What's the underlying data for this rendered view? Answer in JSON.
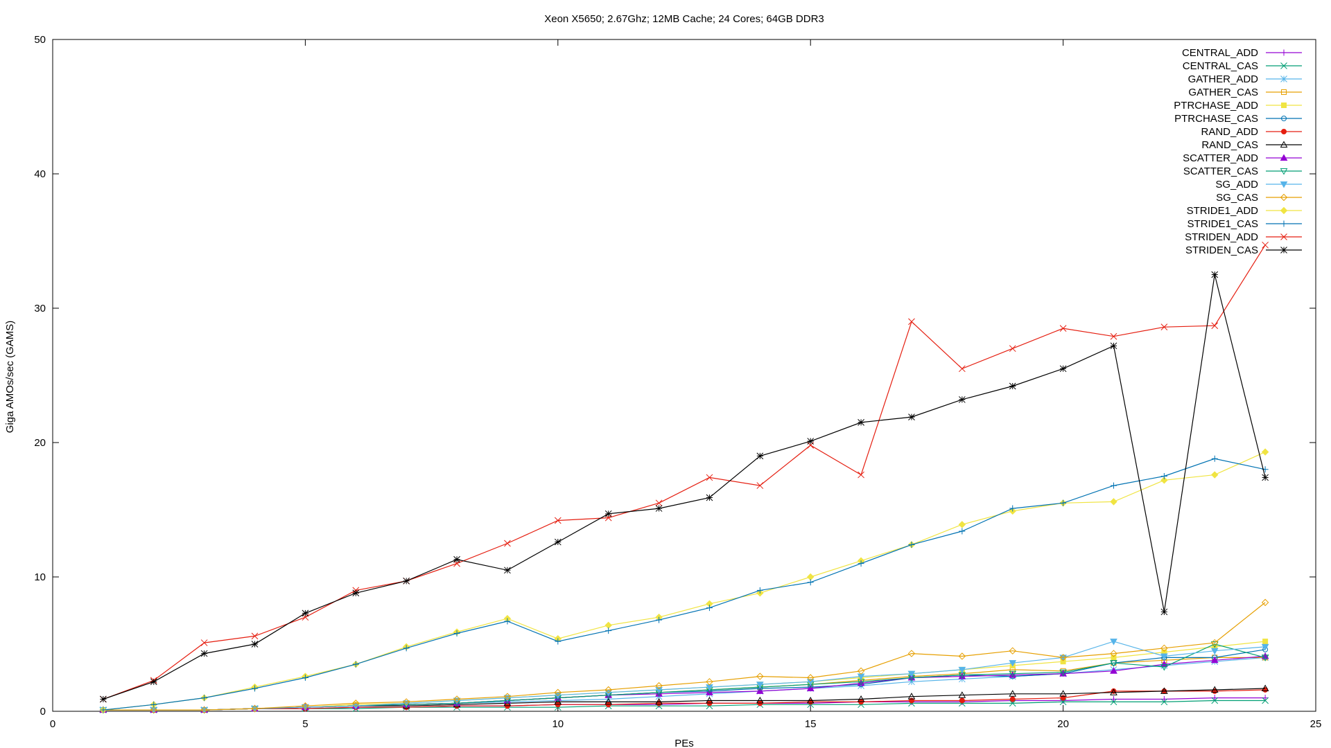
{
  "chart_data": {
    "type": "line",
    "title": "Xeon X5650; 2.67Ghz; 12MB Cache; 24 Cores; 64GB DDR3",
    "xlabel": "PEs",
    "ylabel": "Giga AMOs/sec (GAMS)",
    "xlim": [
      0,
      25
    ],
    "ylim": [
      0,
      50
    ],
    "xticks": [
      0,
      5,
      10,
      15,
      20,
      25
    ],
    "yticks": [
      0,
      10,
      20,
      30,
      40,
      50
    ],
    "grid": false,
    "legend_position": "top-right",
    "x": [
      1,
      2,
      3,
      4,
      5,
      6,
      7,
      8,
      9,
      10,
      11,
      12,
      13,
      14,
      15,
      16,
      17,
      18,
      19,
      20,
      21,
      22,
      23,
      24
    ],
    "series": [
      {
        "name": "CENTRAL_ADD",
        "color": "#9400d3",
        "marker": "plus",
        "values": [
          0.1,
          0.1,
          0.1,
          0.2,
          0.2,
          0.3,
          0.3,
          0.4,
          0.4,
          0.5,
          0.5,
          0.5,
          0.6,
          0.6,
          0.6,
          0.7,
          0.7,
          0.7,
          0.8,
          0.8,
          0.9,
          0.9,
          1.0,
          1.0
        ]
      },
      {
        "name": "CENTRAL_CAS",
        "color": "#009e73",
        "marker": "cross",
        "values": [
          0.1,
          0.1,
          0.1,
          0.2,
          0.2,
          0.2,
          0.3,
          0.3,
          0.3,
          0.3,
          0.4,
          0.4,
          0.4,
          0.5,
          0.5,
          0.5,
          0.6,
          0.6,
          0.6,
          0.7,
          0.7,
          0.7,
          0.8,
          0.8
        ]
      },
      {
        "name": "GATHER_ADD",
        "color": "#56b4e9",
        "marker": "star",
        "values": [
          0.1,
          0.1,
          0.1,
          0.2,
          0.3,
          0.4,
          0.5,
          0.6,
          0.7,
          0.8,
          0.9,
          1.1,
          1.3,
          1.5,
          1.7,
          1.9,
          2.2,
          2.4,
          2.6,
          2.8,
          3.1,
          3.4,
          3.7,
          4.0
        ]
      },
      {
        "name": "GATHER_CAS",
        "color": "#e69f00",
        "marker": "square",
        "values": [
          0.1,
          0.1,
          0.1,
          0.2,
          0.3,
          0.4,
          0.5,
          0.6,
          0.8,
          1.0,
          1.2,
          1.4,
          1.6,
          1.8,
          2.0,
          2.3,
          2.6,
          2.8,
          3.1,
          3.0,
          3.6,
          3.8,
          4.0,
          4.0
        ]
      },
      {
        "name": "PTRCHASE_ADD",
        "color": "#f0e442",
        "marker": "fsquare",
        "values": [
          0.1,
          0.1,
          0.1,
          0.2,
          0.3,
          0.5,
          0.6,
          0.8,
          1.0,
          1.2,
          1.4,
          1.6,
          1.8,
          2.0,
          2.2,
          2.5,
          2.8,
          3.1,
          3.4,
          3.7,
          4.0,
          4.4,
          4.8,
          5.2
        ]
      },
      {
        "name": "PTRCHASE_CAS",
        "color": "#0072b2",
        "marker": "circle",
        "values": [
          0.1,
          0.1,
          0.1,
          0.2,
          0.3,
          0.4,
          0.5,
          0.6,
          0.8,
          1.0,
          1.2,
          1.4,
          1.5,
          1.7,
          1.8,
          2.0,
          2.5,
          2.7,
          2.6,
          2.8,
          3.6,
          4.0,
          4.0,
          4.6
        ]
      },
      {
        "name": "RAND_ADD",
        "color": "#e51e10",
        "marker": "fcircle",
        "values": [
          0.1,
          0.1,
          0.1,
          0.2,
          0.2,
          0.3,
          0.3,
          0.4,
          0.4,
          0.5,
          0.5,
          0.6,
          0.6,
          0.6,
          0.7,
          0.7,
          0.8,
          0.8,
          0.9,
          1.0,
          1.5,
          1.5,
          1.5,
          1.6
        ]
      },
      {
        "name": "RAND_CAS",
        "color": "#000000",
        "marker": "triangle",
        "values": [
          0.1,
          0.1,
          0.1,
          0.2,
          0.3,
          0.4,
          0.4,
          0.5,
          0.6,
          0.7,
          0.7,
          0.7,
          0.8,
          0.8,
          0.8,
          0.9,
          1.1,
          1.2,
          1.3,
          1.3,
          1.4,
          1.5,
          1.6,
          1.7
        ]
      },
      {
        "name": "SCATTER_ADD",
        "color": "#9400d3",
        "marker": "ftriangle",
        "values": [
          0.1,
          0.1,
          0.1,
          0.2,
          0.3,
          0.4,
          0.5,
          0.6,
          0.8,
          1.0,
          1.2,
          1.3,
          1.4,
          1.5,
          1.7,
          2.1,
          2.5,
          2.6,
          2.7,
          2.8,
          3.0,
          3.5,
          3.8,
          4.1
        ]
      },
      {
        "name": "SCATTER_CAS",
        "color": "#009e73",
        "marker": "itriangle",
        "values": [
          0.1,
          0.1,
          0.1,
          0.2,
          0.3,
          0.4,
          0.5,
          0.6,
          0.8,
          1.0,
          1.2,
          1.4,
          1.6,
          1.8,
          2.0,
          2.2,
          2.5,
          2.7,
          2.8,
          2.9,
          3.6,
          3.3,
          5.0,
          4.0
        ]
      },
      {
        "name": "SG_ADD",
        "color": "#56b4e9",
        "marker": "fitriangle",
        "values": [
          0.1,
          0.1,
          0.1,
          0.2,
          0.3,
          0.4,
          0.6,
          0.8,
          1.0,
          1.2,
          1.4,
          1.6,
          1.8,
          2.0,
          2.2,
          2.6,
          2.8,
          3.1,
          3.6,
          4.0,
          5.2,
          4.1,
          4.5,
          4.8
        ]
      },
      {
        "name": "SG_CAS",
        "color": "#e69f00",
        "marker": "diamond",
        "values": [
          0.1,
          0.1,
          0.1,
          0.2,
          0.4,
          0.6,
          0.7,
          0.9,
          1.1,
          1.4,
          1.6,
          1.9,
          2.2,
          2.6,
          2.5,
          3.0,
          4.3,
          4.1,
          4.5,
          4.0,
          4.3,
          4.7,
          5.1,
          8.1
        ]
      },
      {
        "name": "STRIDE1_ADD",
        "color": "#f0e442",
        "marker": "fdiamond",
        "values": [
          0.1,
          0.5,
          1.0,
          1.8,
          2.6,
          3.5,
          4.8,
          5.9,
          6.9,
          5.4,
          6.4,
          7.0,
          8.0,
          8.8,
          10.0,
          11.2,
          12.4,
          13.9,
          14.9,
          15.5,
          15.6,
          17.2,
          17.6,
          19.3
        ]
      },
      {
        "name": "STRIDE1_CAS",
        "color": "#0072b2",
        "marker": "plus",
        "values": [
          0.1,
          0.5,
          1.0,
          1.7,
          2.5,
          3.5,
          4.7,
          5.8,
          6.7,
          5.2,
          6.0,
          6.8,
          7.7,
          9.0,
          9.6,
          11.0,
          12.4,
          13.4,
          15.1,
          15.5,
          16.8,
          17.5,
          18.8,
          18.0
        ]
      },
      {
        "name": "STRIDEN_ADD",
        "color": "#e51e10",
        "marker": "cross",
        "values": [
          0.9,
          2.3,
          5.1,
          5.6,
          7.0,
          9.0,
          9.7,
          11.0,
          12.5,
          14.2,
          14.4,
          15.5,
          17.4,
          16.8,
          19.8,
          17.6,
          29.0,
          25.5,
          27.0,
          28.5,
          27.9,
          28.6,
          28.7,
          34.7
        ]
      },
      {
        "name": "STRIDEN_CAS",
        "color": "#000000",
        "marker": "star",
        "values": [
          0.9,
          2.2,
          4.3,
          5.0,
          7.3,
          8.8,
          9.7,
          11.3,
          10.5,
          12.6,
          14.7,
          15.1,
          15.9,
          19.0,
          20.1,
          21.5,
          21.9,
          23.2,
          24.2,
          25.5,
          27.2,
          7.4,
          32.5,
          17.4
        ]
      }
    ]
  }
}
